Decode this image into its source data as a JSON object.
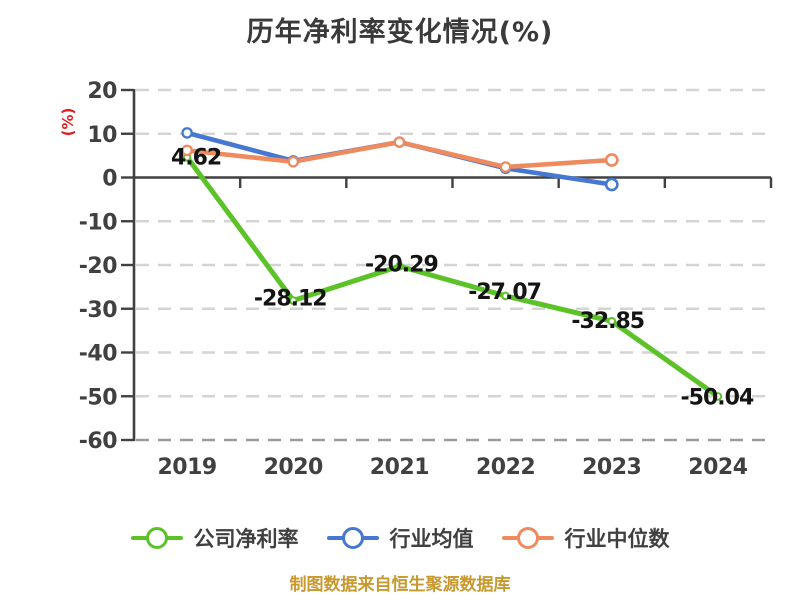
{
  "title": "历年净利率变化情况(%)",
  "y_axis_label": "(%)",
  "footer": "制图数据来自恒生聚源数据库",
  "colors": {
    "company": "#5bc228",
    "industry_avg": "#4678d2",
    "industry_median": "#ee8a5e",
    "axis": "#404040",
    "grid": "#d4d4d4",
    "grid_bottom": "#999999",
    "title_text": "#3a3a3a",
    "y_label_red": "#e02020",
    "footer_text": "#c8992e",
    "value_label": "#141414",
    "marker_fill": "#ffffff"
  },
  "chart_data": {
    "type": "line",
    "title": "历年净利率变化情况(%)",
    "xlabel": "",
    "ylabel": "(%)",
    "categories": [
      "2019",
      "2020",
      "2021",
      "2022",
      "2023",
      "2024"
    ],
    "yticks": [
      20,
      10,
      0,
      -10,
      -20,
      -30,
      -40,
      -50,
      -60
    ],
    "ylim": [
      -60,
      20
    ],
    "ytick_step": 10,
    "grid": true,
    "grid_style": "dashed",
    "legend_position": "bottom",
    "series": [
      {
        "id": "company",
        "name": "公司净利率",
        "color_key": "company",
        "values": [
          4.62,
          -28.12,
          -20.29,
          -27.07,
          -32.85,
          -50.04
        ],
        "show_value_labels": true
      },
      {
        "id": "industry-average",
        "name": "行业均值",
        "color_key": "industry_avg",
        "values": [
          10.2,
          3.8,
          8.1,
          2.1,
          -1.6,
          null
        ],
        "show_value_labels": false
      },
      {
        "id": "industry-median",
        "name": "行业中位数",
        "color_key": "industry_median",
        "values": [
          6.2,
          3.6,
          8.1,
          2.4,
          4.0,
          null
        ],
        "show_value_labels": false
      }
    ],
    "data_labels": [
      "4.62",
      "-28.12",
      "-20.29",
      "-27.07",
      "-32.85",
      "-50.04"
    ]
  }
}
